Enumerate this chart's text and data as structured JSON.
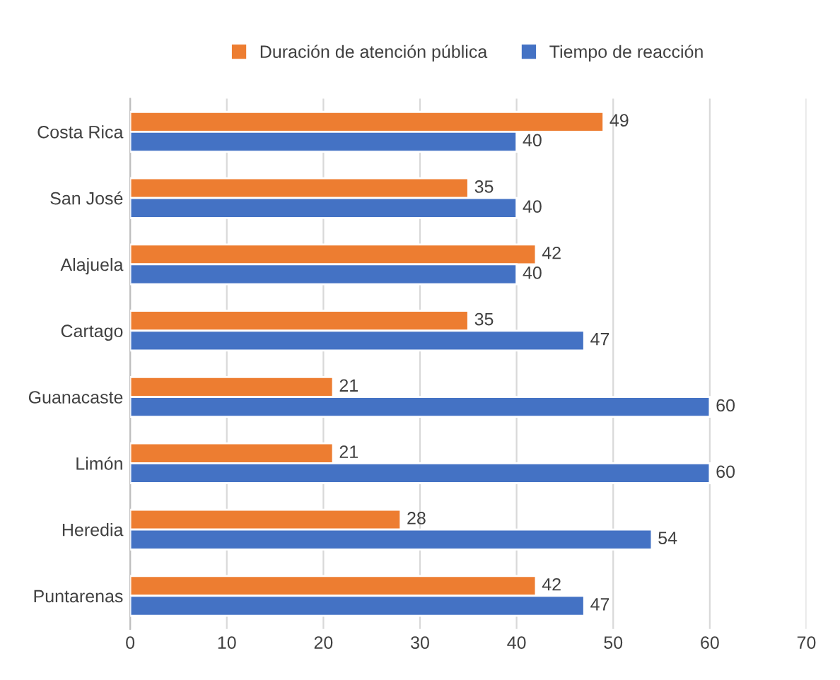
{
  "chart_data": {
    "type": "bar",
    "orientation": "horizontal",
    "categories": [
      "Costa Rica",
      "San José",
      "Alajuela",
      "Cartago",
      "Guanacaste",
      "Limón",
      "Heredia",
      "Puntarenas"
    ],
    "series": [
      {
        "name": "Duración de atención pública",
        "color": "#ed7d31",
        "values": [
          49,
          35,
          42,
          35,
          21,
          21,
          28,
          42
        ]
      },
      {
        "name": "Tiempo de reacción",
        "color": "#4472c4",
        "values": [
          40,
          40,
          40,
          47,
          60,
          60,
          54,
          47
        ]
      }
    ],
    "xlim": [
      0,
      70
    ],
    "xticks": [
      0,
      10,
      20,
      30,
      40,
      50,
      60,
      70
    ],
    "grid": "x",
    "legend": "top",
    "data_labels": true
  }
}
